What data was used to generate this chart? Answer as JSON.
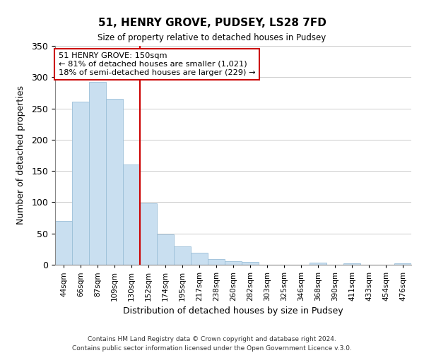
{
  "title": "51, HENRY GROVE, PUDSEY, LS28 7FD",
  "subtitle": "Size of property relative to detached houses in Pudsey",
  "xlabel": "Distribution of detached houses by size in Pudsey",
  "ylabel": "Number of detached properties",
  "footer1": "Contains HM Land Registry data © Crown copyright and database right 2024.",
  "footer2": "Contains public sector information licensed under the Open Government Licence v.3.0.",
  "annotation_title": "51 HENRY GROVE: 150sqm",
  "annotation_line1": "← 81% of detached houses are smaller (1,021)",
  "annotation_line2": "18% of semi-detached houses are larger (229) →",
  "bar_color": "#c9dff0",
  "bar_edge_color": "#9bbfd8",
  "vline_color": "#cc0000",
  "annotation_box_edge": "#cc0000",
  "categories": [
    "44sqm",
    "66sqm",
    "87sqm",
    "109sqm",
    "130sqm",
    "152sqm",
    "174sqm",
    "195sqm",
    "217sqm",
    "238sqm",
    "260sqm",
    "282sqm",
    "303sqm",
    "325sqm",
    "346sqm",
    "368sqm",
    "390sqm",
    "411sqm",
    "433sqm",
    "454sqm",
    "476sqm"
  ],
  "values": [
    70,
    261,
    292,
    265,
    160,
    98,
    49,
    29,
    19,
    9,
    6,
    5,
    0,
    0,
    0,
    3,
    0,
    2,
    0,
    0,
    2
  ],
  "vline_x": 4.5,
  "ylim": [
    0,
    350
  ],
  "yticks": [
    0,
    50,
    100,
    150,
    200,
    250,
    300,
    350
  ]
}
